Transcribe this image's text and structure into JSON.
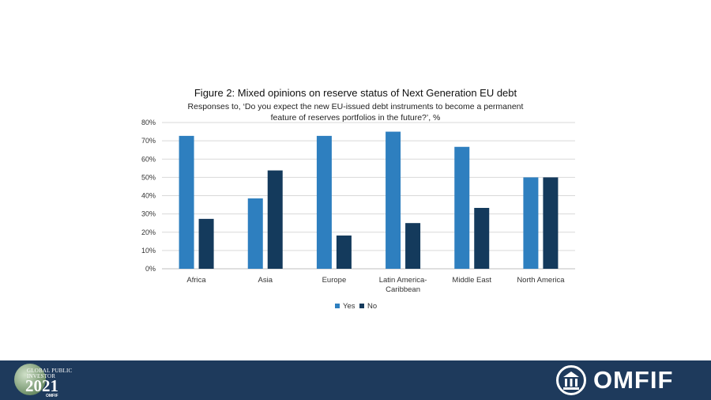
{
  "chart_data": {
    "type": "bar",
    "title": "Figure 2: Mixed opinions on reserve status of Next Generation EU debt",
    "subtitle_lines": [
      "Responses to, ‘Do you expect the new EU-issued debt instruments to become a permanent",
      "feature of reserves portfolios in the future?’, %"
    ],
    "categories": [
      [
        "Africa"
      ],
      [
        "Asia"
      ],
      [
        "Europe"
      ],
      [
        "Latin America-",
        "Caribbean"
      ],
      [
        "Middle East"
      ],
      [
        "North America"
      ]
    ],
    "series": [
      {
        "name": "Yes",
        "color": "#2e7fbf",
        "values": [
          72.7,
          38.5,
          72.7,
          75.0,
          66.7,
          50.0
        ]
      },
      {
        "name": "No",
        "color": "#143a5c",
        "values": [
          27.3,
          53.8,
          18.2,
          25.0,
          33.3,
          50.0
        ]
      }
    ],
    "y_ticks": [
      "0%",
      "10%",
      "20%",
      "30%",
      "40%",
      "50%",
      "60%",
      "70%",
      "80%"
    ],
    "ylim": [
      0,
      80
    ],
    "grid": true,
    "legend_position": "bottom"
  },
  "footer": {
    "color": "#1e3a5c",
    "event_logo": {
      "name_lines": [
        "GLOBAL PUBLIC",
        "INVESTOR"
      ],
      "year": "2021",
      "org": "OMFIF"
    },
    "brand_logo": "OMFIF"
  }
}
